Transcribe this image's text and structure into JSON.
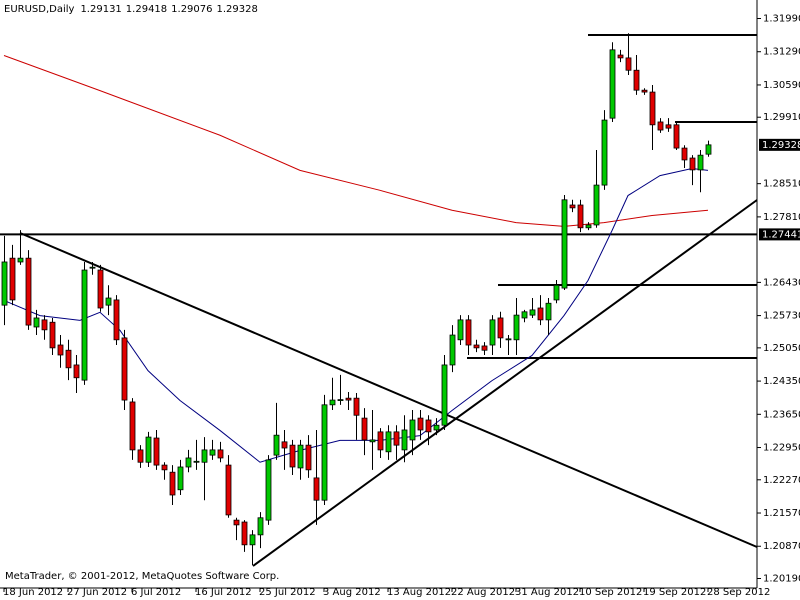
{
  "chart_data": {
    "type": "candlestick",
    "title": "EURUSD,Daily",
    "watermark": "MetaTrader, © 2001-2012, MetaQuotes Software Corp.",
    "categories": [
      "18 Jun 2012",
      null,
      null,
      null,
      null,
      null,
      null,
      null,
      "27 Jun 2012",
      null,
      null,
      null,
      null,
      null,
      null,
      null,
      "6 Jul 2012",
      null,
      null,
      null,
      null,
      null,
      null,
      null,
      "16 Jul 2012",
      null,
      null,
      null,
      null,
      null,
      null,
      null,
      "25 Jul 2012",
      null,
      null,
      null,
      null,
      null,
      null,
      null,
      "3 Aug 2012",
      null,
      null,
      null,
      null,
      null,
      null,
      null,
      "13 Aug 2012",
      null,
      null,
      null,
      null,
      null,
      null,
      null,
      "22 Aug 2012",
      null,
      null,
      null,
      null,
      null,
      null,
      null,
      "31 Aug 2012",
      null,
      null,
      null,
      null,
      null,
      null,
      null,
      "10 Sep 2012",
      null,
      null,
      null,
      null,
      null,
      null,
      null,
      "19 Sep 2012",
      null,
      null,
      null,
      null,
      null,
      null,
      null,
      "28 Sep 2012"
    ],
    "open": [
      1.2595,
      1.2694,
      1.2686,
      1.2694,
      1.2549,
      1.2564,
      1.2559,
      1.2511,
      1.25,
      1.2469,
      1.2437,
      1.2673,
      1.2669,
      1.2595,
      1.2606,
      1.2526,
      1.2391,
      1.229,
      1.2264,
      1.2315,
      1.2258,
      1.2243,
      1.2206,
      1.2254,
      1.2264,
      1.2264,
      1.2279,
      1.229,
      1.2258,
      1.2142,
      1.2138,
      1.209,
      1.2111,
      1.2142,
      1.2279,
      1.2307,
      1.23,
      1.2252,
      1.23,
      1.2231,
      1.2184,
      1.2385,
      1.2395,
      1.2399,
      1.2399,
      1.2357,
      1.2307,
      1.2328,
      1.2286,
      1.2328,
      1.229,
      1.2311,
      1.2357,
      1.2353,
      1.2332,
      1.2342,
      1.2469,
      1.2522,
      1.2564,
      1.2511,
      1.2509,
      1.2511,
      1.2568,
      1.2522,
      1.2522,
      1.2568,
      1.2574,
      1.2589,
      1.2564,
      1.2606,
      1.2631,
      1.2806,
      1.2806,
      1.2758,
      1.2764,
      1.2848,
      1.2989,
      1.3122,
      1.3116,
      1.309,
      1.3048,
      1.3044,
      1.2981,
      1.2975,
      1.2975,
      1.2926,
      1.2905,
      1.288,
      1.29131
    ],
    "high": [
      1.2741,
      1.2722,
      1.2753,
      1.2711,
      1.2585,
      1.2574,
      1.2568,
      1.2532,
      1.2522,
      1.249,
      1.2686,
      1.2686,
      1.268,
      1.2637,
      1.2616,
      1.2543,
      1.2399,
      1.23,
      1.2328,
      1.2332,
      1.2264,
      1.2258,
      1.2269,
      1.229,
      1.2311,
      1.2317,
      1.2311,
      1.2307,
      1.2279,
      1.2147,
      1.2142,
      1.2121,
      1.2159,
      1.2279,
      1.2389,
      1.2332,
      1.2311,
      1.2311,
      1.2321,
      1.2332,
      1.2406,
      1.2442,
      1.2448,
      1.2412,
      1.241,
      1.2378,
      1.2374,
      1.2336,
      1.2342,
      1.2342,
      1.2363,
      1.2374,
      1.2374,
      1.2363,
      1.2357,
      1.249,
      1.2553,
      1.2574,
      1.2574,
      1.2522,
      1.2517,
      1.2574,
      1.2581,
      1.2532,
      1.261,
      1.2585,
      1.261,
      1.2616,
      1.261,
      1.2648,
      1.2827,
      1.2817,
      1.2817,
      1.277,
      1.2922,
      1.3006,
      1.3149,
      1.3133,
      1.3168,
      1.3122,
      1.3052,
      1.3059,
      1.2989,
      1.2989,
      1.2981,
      1.2932,
      1.2911,
      1.2922,
      1.29418
    ],
    "low": [
      1.2553,
      1.2595,
      1.268,
      1.2543,
      1.2532,
      1.2522,
      1.249,
      1.2463,
      1.2437,
      1.241,
      1.2427,
      1.2659,
      1.2581,
      1.2574,
      1.2511,
      1.2374,
      1.2269,
      1.2252,
      1.2254,
      1.2248,
      1.2227,
      1.2174,
      1.2195,
      1.2243,
      1.2248,
      1.2184,
      1.2269,
      1.2264,
      1.2147,
      1.21,
      1.2075,
      1.2047,
      1.2083,
      1.2132,
      1.2269,
      1.2248,
      1.2237,
      1.2227,
      1.2231,
      1.2132,
      1.2174,
      1.2374,
      1.2385,
      1.2374,
      1.2311,
      1.2279,
      1.2248,
      1.2273,
      1.2269,
      1.2269,
      1.2264,
      1.2279,
      1.2311,
      1.23,
      1.2321,
      1.2332,
      1.2454,
      1.2511,
      1.249,
      1.2496,
      1.249,
      1.249,
      1.2505,
      1.249,
      1.249,
      1.2559,
      1.2568,
      1.2553,
      1.2532,
      1.2599,
      1.2627,
      1.2791,
      1.2749,
      1.2753,
      1.2758,
      1.2838,
      1.2981,
      1.3107,
      1.308,
      1.3038,
      1.3038,
      1.2922,
      1.2958,
      1.296,
      1.2922,
      1.2884,
      1.2848,
      1.2833,
      1.29076
    ],
    "close": [
      1.2686,
      1.2606,
      1.2694,
      1.2553,
      1.2568,
      1.2543,
      1.2505,
      1.249,
      1.2463,
      1.2442,
      1.2669,
      1.2675,
      1.2589,
      1.261,
      1.2522,
      1.2395,
      1.229,
      1.2264,
      1.2317,
      1.2258,
      1.2248,
      1.2195,
      1.2254,
      1.2273,
      1.2266,
      1.229,
      1.229,
      1.2273,
      1.2153,
      1.2132,
      1.209,
      1.2111,
      1.2147,
      1.2269,
      1.2321,
      1.2294,
      1.2254,
      1.23,
      1.2248,
      1.2184,
      1.2385,
      1.2395,
      1.2396,
      1.2395,
      1.2363,
      1.2311,
      1.2311,
      1.229,
      1.2328,
      1.23,
      1.2332,
      1.2353,
      1.2332,
      1.2328,
      1.2342,
      1.2469,
      1.2532,
      1.2564,
      1.2511,
      1.2505,
      1.25,
      1.2564,
      1.2526,
      1.2524,
      1.2574,
      1.2581,
      1.2585,
      1.2564,
      1.2599,
      1.2637,
      1.2817,
      1.28,
      1.2758,
      1.2764,
      1.2848,
      1.2985,
      1.3133,
      1.3116,
      1.309,
      1.3048,
      1.3044,
      1.2975,
      1.2964,
      1.2968,
      1.2926,
      1.2901,
      1.288,
      1.2911,
      1.29328
    ],
    "up_color": "#00c800",
    "down_color": "#e00000",
    "ylim": [
      1.1999,
      1.3238
    ],
    "yticks": [
      {
        "value": 1.3199,
        "label": "1.31990"
      },
      {
        "value": 1.3129,
        "label": "1.31290"
      },
      {
        "value": 1.3059,
        "label": "1.30590"
      },
      {
        "value": 1.2991,
        "label": "1.29910"
      },
      {
        "value": 1.2851,
        "label": "1.28510"
      },
      {
        "value": 1.2781,
        "label": "1.27810"
      },
      {
        "value": 1.2643,
        "label": "1.26430"
      },
      {
        "value": 1.2573,
        "label": "1.25730"
      },
      {
        "value": 1.2505,
        "label": "1.25050"
      },
      {
        "value": 1.2435,
        "label": "1.24350"
      },
      {
        "value": 1.2365,
        "label": "1.23650"
      },
      {
        "value": 1.2295,
        "label": "1.22950"
      },
      {
        "value": 1.2227,
        "label": "1.22270"
      },
      {
        "value": 1.2157,
        "label": "1.21570"
      },
      {
        "value": 1.2087,
        "label": "1.20870"
      },
      {
        "value": 1.2019,
        "label": "1.20190"
      }
    ],
    "hline": {
      "value": 1.27441
    },
    "moving_averages": [
      {
        "color": "#cc0000",
        "x": [
          0,
          12,
          27,
          37,
          47,
          56,
          64,
          70,
          75,
          81,
          88
        ],
        "values": [
          1.3121,
          1.3047,
          1.2953,
          1.2879,
          1.2837,
          1.2795,
          1.2769,
          1.2761,
          1.2769,
          1.2784,
          1.2795
        ]
      },
      {
        "color": "#000080",
        "x": [
          0,
          4.5,
          9.5,
          12,
          14.5,
          18,
          22,
          27,
          32,
          37,
          42,
          47,
          52,
          56,
          61,
          66,
          70,
          73,
          76,
          78,
          82,
          86,
          88
        ],
        "values": [
          1.2605,
          1.2573,
          1.2563,
          1.258,
          1.2542,
          1.2457,
          1.2394,
          1.2331,
          1.2264,
          1.2289,
          1.231,
          1.231,
          1.232,
          1.2373,
          1.2436,
          1.2489,
          1.2573,
          1.2647,
          1.2752,
          1.2826,
          1.2868,
          1.2883,
          1.2879
        ]
      }
    ]
  }
}
